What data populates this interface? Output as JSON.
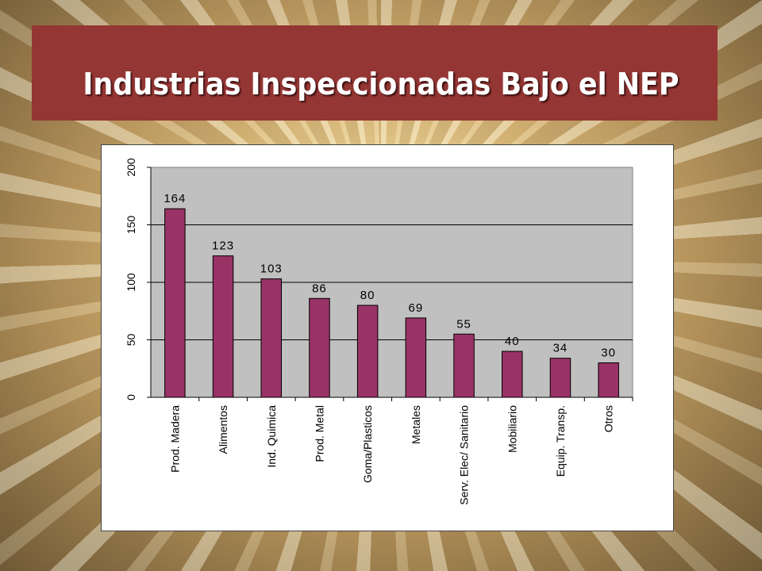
{
  "slide": {
    "title": "Industrias Inspeccionadas Bajo el NEP",
    "colors": {
      "title_bar": "#943634",
      "bar_fill": "#993366",
      "plot_bg": "#c0c0c0"
    }
  },
  "chart_data": {
    "type": "bar",
    "title": "",
    "xlabel": "",
    "ylabel": "",
    "categories": [
      "Prod. Madera",
      "Alimentos",
      "Ind. Quimica",
      "Prod. Metal",
      "Goma/Plasticos",
      "Metales",
      "Serv. Elec/ Sanitario",
      "Mobiliario",
      "Equip. Transp.",
      "Otros"
    ],
    "values": [
      164,
      123,
      103,
      86,
      80,
      69,
      55,
      40,
      34,
      30
    ],
    "data_labels": [
      "164",
      "123",
      "103",
      "86",
      "80",
      "69",
      "55",
      "40",
      "34",
      "30"
    ],
    "ylim": [
      0,
      200
    ],
    "yticks": [
      "0",
      "50",
      "100",
      "150",
      "200"
    ],
    "grid": true,
    "legend": "none"
  }
}
